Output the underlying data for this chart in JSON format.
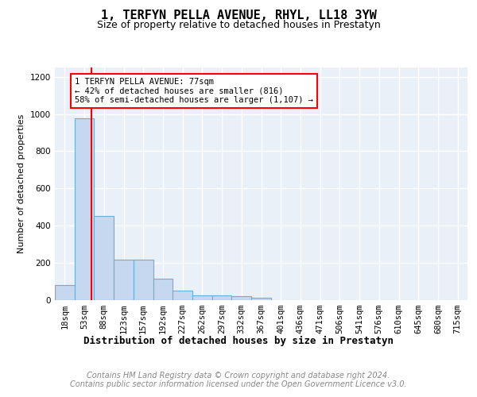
{
  "title": "1, TERFYN PELLA AVENUE, RHYL, LL18 3YW",
  "subtitle": "Size of property relative to detached houses in Prestatyn",
  "xlabel": "Distribution of detached houses by size in Prestatyn",
  "ylabel": "Number of detached properties",
  "categories": [
    "18sqm",
    "53sqm",
    "88sqm",
    "123sqm",
    "157sqm",
    "192sqm",
    "227sqm",
    "262sqm",
    "297sqm",
    "332sqm",
    "367sqm",
    "401sqm",
    "436sqm",
    "471sqm",
    "506sqm",
    "541sqm",
    "576sqm",
    "610sqm",
    "645sqm",
    "680sqm",
    "715sqm"
  ],
  "values": [
    80,
    975,
    450,
    215,
    215,
    115,
    50,
    25,
    22,
    18,
    12,
    0,
    0,
    0,
    0,
    0,
    0,
    0,
    0,
    0,
    0
  ],
  "bar_color": "#c5d8ef",
  "bar_edge_color": "#6baed6",
  "red_line_x": 1.35,
  "annotation_text": "1 TERFYN PELLA AVENUE: 77sqm\n← 42% of detached houses are smaller (816)\n58% of semi-detached houses are larger (1,107) →",
  "ylim": [
    0,
    1250
  ],
  "yticks": [
    0,
    200,
    400,
    600,
    800,
    1000,
    1200
  ],
  "background_color": "#eaf0f8",
  "footer_text": "Contains HM Land Registry data © Crown copyright and database right 2024.\nContains public sector information licensed under the Open Government Licence v3.0.",
  "title_fontsize": 11,
  "subtitle_fontsize": 9,
  "ylabel_fontsize": 8,
  "xlabel_fontsize": 9,
  "tick_fontsize": 7.5,
  "annotation_fontsize": 7.5,
  "footer_fontsize": 7
}
